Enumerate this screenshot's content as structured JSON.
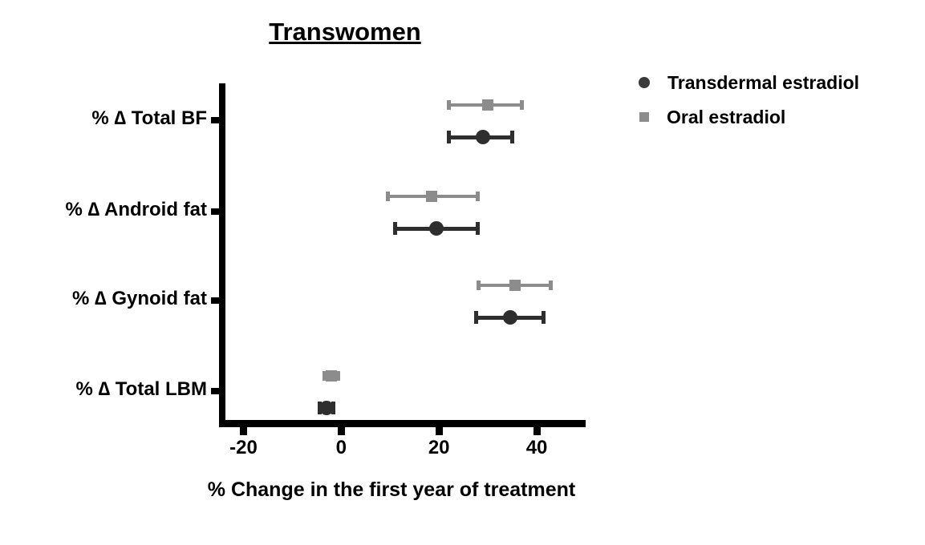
{
  "chart_data": {
    "type": "scatter",
    "subtype": "horizontal-point-estimates-with-error-bars",
    "title": "Transwomen",
    "xlabel": "% Change in the first year of treatment",
    "categories": [
      "% ∆ Total BF",
      "% ∆ Android fat",
      "% ∆ Gynoid fat",
      "% ∆ Total LBM"
    ],
    "xlim": [
      -25,
      50
    ],
    "xticks": [
      "-20",
      "0",
      "20",
      "40"
    ],
    "grid": false,
    "legend_position": "upper right, outside plot",
    "series": [
      {
        "name": "Transdermal estradiol",
        "marker": "circle",
        "color": "#2e2e2e",
        "values": [
          29,
          19.5,
          34.5,
          -3
        ],
        "ci_low": [
          22,
          11,
          27.5,
          -4.5
        ],
        "ci_high": [
          35,
          28,
          41.5,
          -1.5
        ]
      },
      {
        "name": "Oral estradiol",
        "marker": "square",
        "color": "#8c8c8c",
        "values": [
          30,
          18.5,
          35.5,
          -2
        ],
        "ci_low": [
          22,
          9.5,
          28,
          -3.5
        ],
        "ci_high": [
          37,
          28,
          43,
          -0.5
        ]
      }
    ]
  }
}
